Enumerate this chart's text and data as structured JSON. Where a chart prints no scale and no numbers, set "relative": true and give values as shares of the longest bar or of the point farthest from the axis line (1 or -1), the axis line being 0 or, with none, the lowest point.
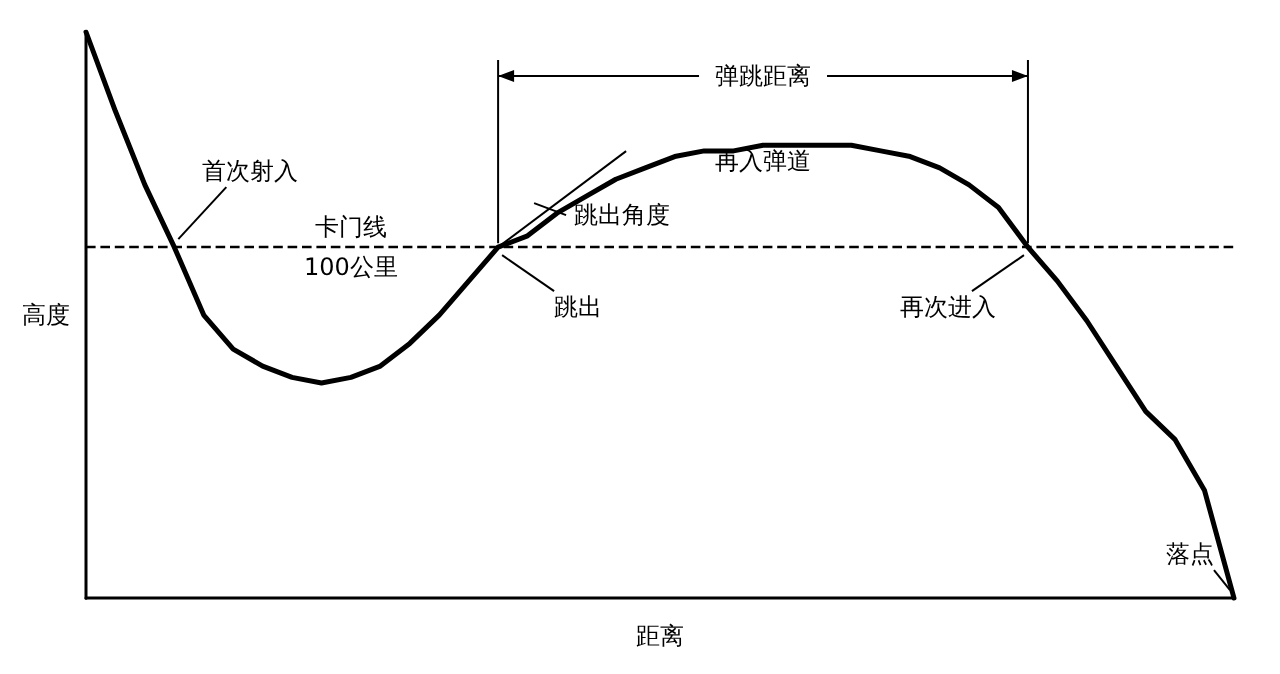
{
  "chart_data": {
    "type": "line",
    "relative": true,
    "xlabel": "距离",
    "ylabel": "高度",
    "color": "#000000",
    "marker": "none",
    "line_style": "solid",
    "categories": [
      null,
      null,
      null,
      null,
      null,
      null,
      null,
      null,
      null,
      null,
      null,
      null,
      null,
      null,
      null,
      null,
      null,
      null,
      null,
      null,
      null,
      null,
      null,
      null,
      null,
      null,
      null,
      null,
      null,
      null,
      null,
      null,
      null,
      null,
      null,
      null,
      null,
      null,
      null,
      null
    ],
    "values": [
      1.0,
      0.86,
      0.73,
      0.62,
      0.5,
      0.44,
      0.41,
      0.39,
      0.38,
      0.39,
      0.41,
      0.45,
      0.5,
      0.56,
      0.62,
      0.64,
      0.68,
      0.71,
      0.74,
      0.76,
      0.78,
      0.79,
      0.79,
      0.8,
      0.8,
      0.8,
      0.8,
      0.79,
      0.78,
      0.76,
      0.73,
      0.69,
      0.62,
      0.56,
      0.49,
      0.41,
      0.33,
      0.28,
      0.19,
      0
    ],
    "ref_lines": [
      {
        "axis": "y",
        "value": 0.62,
        "label": "卡门线\n100公里",
        "line_style": "dashed",
        "color": "#000000"
      }
    ],
    "annotations": [
      "首次射入",
      "跳出",
      "跳出角度",
      "再入弹道",
      "再次进入",
      "落点",
      "弹跳距离"
    ]
  }
}
